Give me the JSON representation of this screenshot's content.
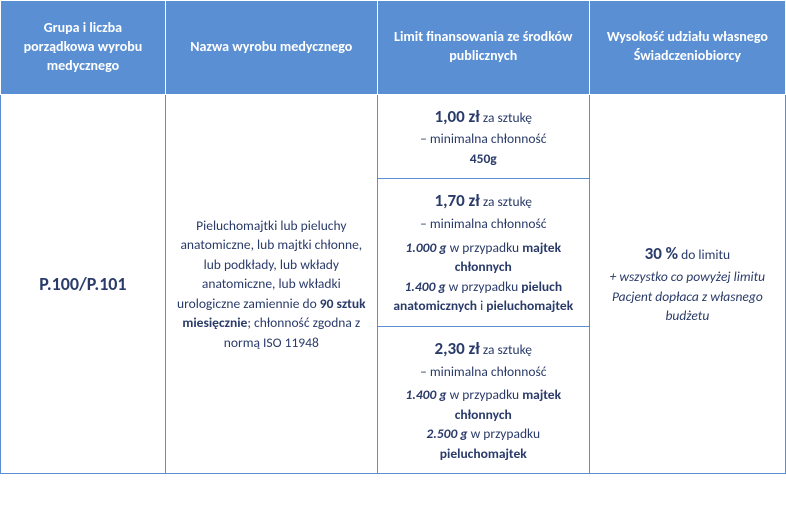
{
  "colors": {
    "header_bg": "#5a8fd4",
    "header_fg": "#ffffff",
    "cell_border": "#5a8fd4",
    "text": "#2a3b6a"
  },
  "headers": {
    "group": "Grupa i liczba porządkowa wyrobu medycznego",
    "name": "Nazwa wyrobu medycznego",
    "limit": "Limit finansowania ze środków publicznych",
    "share": "Wysokość udziału własnego Świadczeniobiorcy"
  },
  "group_code": "P.100/P.101",
  "product_name": {
    "line1": "Pieluchomajtki lub pieluchy anatomiczne, lub majtki chłonne, lub podkłady, lub wkłady anatomiczne, lub wkładki urologiczne zamiennie do",
    "line2_bold": "90 sztuk miesięcznie",
    "line2_tail": "; chłonność zgodna z normą ISO 11948"
  },
  "limits": {
    "r1": {
      "price": "1,00 zł",
      "per": " za sztukę",
      "desc": "– minimalna chłonność",
      "g": "450g"
    },
    "r2": {
      "price": "1,70 zł",
      "per": " za sztukę",
      "desc": "– minimalna chłonność",
      "g1": "1.000 g",
      "t1": " w przypadku ",
      "b1": "majtek chłonnych",
      "g2": "1.400 g",
      "t2": " w przypadku ",
      "b2a": "pieluch anatomicznych",
      "b2and": " i ",
      "b2b": "pieluchomajtek"
    },
    "r3": {
      "price": "2,30 zł",
      "per": " za sztukę",
      "desc": "– minimalna chłonność",
      "g1": "1.400 g",
      "t1": " w przypadku ",
      "b1": "majtek chłonnych",
      "g2": "2.500 g",
      "t2": " w przypadku ",
      "b2": "pieluchomajtek"
    }
  },
  "share": {
    "percent": "30 %",
    "percent_tail": " do limitu",
    "note": "+ wszystko co powyżej limitu Pacjent dopłaca z własnego budżetu"
  }
}
